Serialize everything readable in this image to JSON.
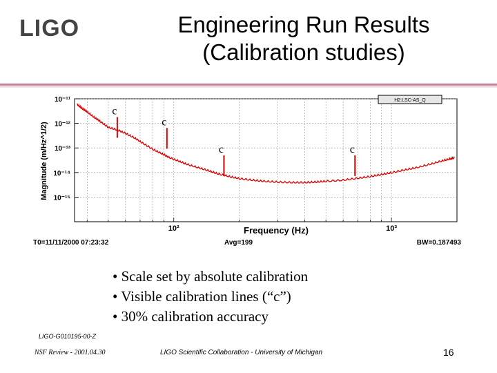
{
  "slide": {
    "logo_text": "LIGO",
    "title_line1": "Engineering Run Results",
    "title_line2": "(Calibration studies)",
    "bullets": [
      "• Scale set by absolute calibration",
      "• Visible calibration lines (“c”)",
      "• 30% calibration accuracy"
    ],
    "doc_id": "LIGO-G010195-00-Z",
    "footer_left": "NSF Review - 2001.04.30",
    "footer_center": "LIGO Scientific Collaboration - University of Michigan",
    "page_number": "16"
  },
  "chart_data": {
    "type": "line",
    "legend_label": "H2:LSC-AS_Q",
    "xlabel": "Frequency (Hz)",
    "ylabel": "Magnitude (m/Hz^1/2)",
    "x_scale": "log",
    "y_scale": "log",
    "xlim": [
      35,
      2000
    ],
    "ylim": [
      1e-16,
      1e-11
    ],
    "x_ticks": [
      {
        "value": 100,
        "label": "10²"
      },
      {
        "value": 1000,
        "label": "10³"
      }
    ],
    "y_ticks": [
      {
        "value": 1e-11,
        "label": "10⁻¹¹"
      },
      {
        "value": 1e-12,
        "label": "10⁻¹²"
      },
      {
        "value": 1e-13,
        "label": "10⁻¹³"
      },
      {
        "value": 1e-14,
        "label": "10⁻¹⁴"
      },
      {
        "value": 1e-15,
        "label": "10⁻¹⁵"
      }
    ],
    "grid": true,
    "line_color": "#dd0000",
    "series": [
      {
        "x": [
          36,
          38,
          40,
          43,
          46,
          50,
          55,
          60,
          66,
          72,
          80,
          88,
          95,
          105,
          115,
          130,
          145,
          160,
          180,
          200,
          230,
          260,
          300,
          350,
          400,
          450,
          500,
          600,
          700,
          800,
          900,
          1000,
          1150,
          1300,
          1500,
          1700,
          1850,
          1950
        ],
        "y": [
          6e-12,
          4e-12,
          3e-12,
          1.8e-12,
          1.2e-12,
          7e-13,
          5.5e-13,
          4e-13,
          2.6e-13,
          1.6e-13,
          9e-14,
          6e-14,
          4.2e-14,
          3e-14,
          2.2e-14,
          1.6e-14,
          1.2e-14,
          9e-15,
          7e-15,
          5.8e-15,
          5e-15,
          4.5e-15,
          4.2e-15,
          4e-15,
          4e-15,
          4.2e-15,
          4.5e-15,
          5e-15,
          6e-15,
          7e-15,
          8.5e-15,
          1e-14,
          1.3e-14,
          1.6e-14,
          2.2e-14,
          3e-14,
          3.6e-14,
          4e-14
        ]
      }
    ],
    "calibration_lines": [
      {
        "x": 55,
        "y": 1.8e-12,
        "label": "c"
      },
      {
        "x": 93,
        "y": 6.5e-13,
        "label": "c"
      },
      {
        "x": 170,
        "y": 5e-14,
        "label": "c"
      },
      {
        "x": 680,
        "y": 5e-14,
        "label": "c"
      }
    ],
    "info_left": "T0=11/11/2000 07:23:32",
    "info_center": "Avg=199",
    "info_right": "BW=0.187493"
  }
}
